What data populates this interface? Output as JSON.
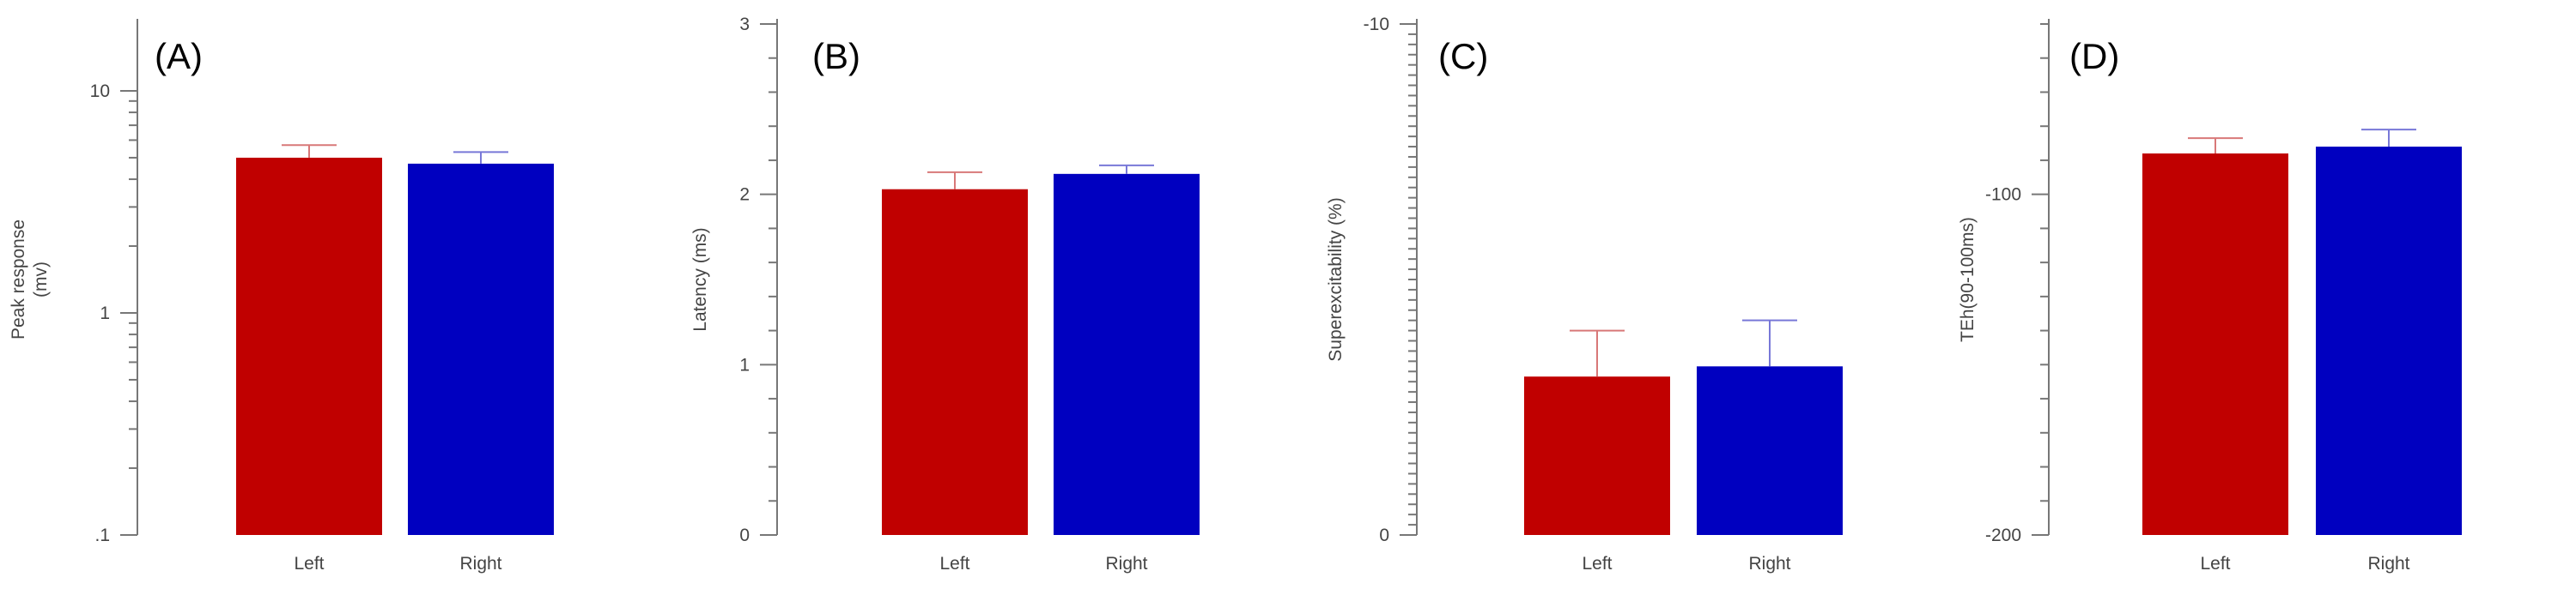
{
  "chart_data": [
    {
      "type": "bar",
      "panel_label": "(A)",
      "ylabel": "Peak response (mv)",
      "ylabel_lines": [
        "Peak response",
        "(mv)"
      ],
      "yscale": "log",
      "ylim": [
        0.1,
        20
      ],
      "yticks": [
        0.1,
        1,
        10
      ],
      "yticklabels": [
        ".1",
        "1",
        "10"
      ],
      "categories": [
        "Left",
        "Right"
      ],
      "values": [
        5.0,
        4.7
      ],
      "errors": [
        0.7,
        0.6
      ],
      "colors": [
        "#c00000",
        "#0000c0"
      ],
      "error_colors": [
        "#d87878",
        "#7878d8"
      ]
    },
    {
      "type": "bar",
      "panel_label": "(B)",
      "ylabel": "Latency (ms)",
      "ylabel_lines": [
        "Latency (ms)"
      ],
      "yscale": "linear",
      "ylim": [
        0,
        3
      ],
      "yticks": [
        0,
        1,
        2,
        3
      ],
      "yticklabels": [
        "0",
        "1",
        "2",
        "3"
      ],
      "categories": [
        "Left",
        "Right"
      ],
      "values": [
        2.03,
        2.12
      ],
      "errors": [
        0.1,
        0.05
      ],
      "colors": [
        "#c00000",
        "#0000c0"
      ],
      "error_colors": [
        "#d87878",
        "#7878d8"
      ]
    },
    {
      "type": "bar",
      "panel_label": "(C)",
      "ylabel": "Superexcitability (%)",
      "ylabel_lines": [
        "Superexcitability (%)"
      ],
      "yscale": "linear",
      "inverted": true,
      "ylim": [
        0,
        -10
      ],
      "yticks": [
        0,
        -10
      ],
      "yticklabels": [
        "0",
        "-10"
      ],
      "categories": [
        "Left",
        "Right"
      ],
      "values": [
        -3.1,
        -3.3
      ],
      "errors": [
        0.9,
        0.9
      ],
      "colors": [
        "#c00000",
        "#0000c0"
      ],
      "error_colors": [
        "#d87878",
        "#7878d8"
      ]
    },
    {
      "type": "bar",
      "panel_label": "(D)",
      "ylabel": "TEh(90-100ms)",
      "ylabel_lines": [
        "TEh(90-100ms)"
      ],
      "yscale": "linear",
      "ylim": [
        -200,
        -50
      ],
      "yticks": [
        -200,
        -100
      ],
      "yticklabels": [
        "-200",
        "-100"
      ],
      "categories": [
        "Left",
        "Right"
      ],
      "values": [
        -88,
        -86
      ],
      "errors": [
        4.5,
        5
      ],
      "colors": [
        "#c00000",
        "#0000c0"
      ],
      "error_colors": [
        "#d87878",
        "#7878d8"
      ]
    }
  ]
}
